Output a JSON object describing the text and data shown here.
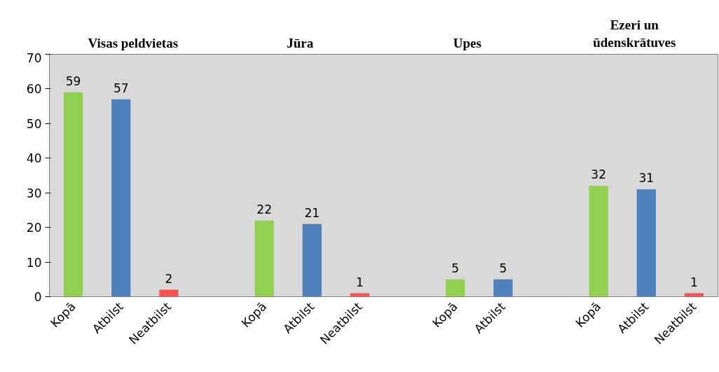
{
  "chart_data": {
    "type": "bar",
    "categories": [
      "Kopā",
      "Atbilst",
      "Neatbilst",
      null,
      "Kopā",
      "Atbilst",
      "Neatbilst",
      null,
      "Kopā",
      "Atbilst",
      null,
      "Kopā",
      "Atbilst",
      "Neatbilst"
    ],
    "values": [
      59,
      57,
      2,
      null,
      22,
      21,
      1,
      null,
      5,
      5,
      null,
      32,
      31,
      1
    ],
    "colors": [
      "#92d050",
      "#4f81bd",
      "#ff4f4f",
      "#92d050",
      "#92d050",
      "#4f81bd",
      "#ff4f4f",
      "#92d050",
      "#92d050",
      "#4f81bd",
      "#92d050",
      "#92d050",
      "#4f81bd",
      "#ff4f4f"
    ],
    "ylim": [
      0,
      70
    ],
    "yticks": [
      0,
      10,
      20,
      30,
      40,
      50,
      60,
      70
    ],
    "data_labels": true,
    "grid": false,
    "annotations": [
      "Visas peldvietas",
      "Jūra",
      "Upes",
      "Ezeri un\nūdenskrātuves"
    ]
  }
}
